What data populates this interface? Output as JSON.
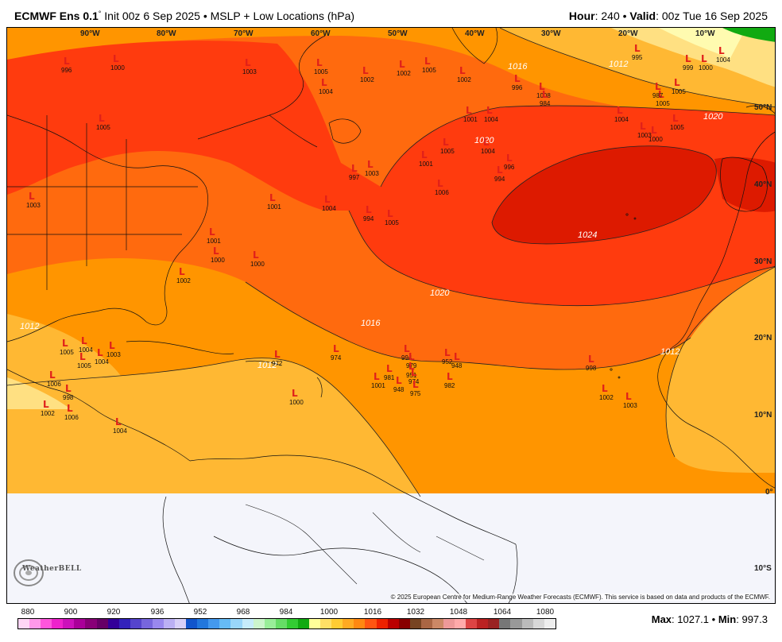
{
  "header": {
    "model": "ECMWF Ens 0.1",
    "deg": "°",
    "init": "Init 00z 6 Sep 2025",
    "sep": "•",
    "field": "MSLP + Low Locations (hPa)",
    "hour_label": "Hour",
    "hour_value": ": 240",
    "valid_label": "Valid",
    "valid_value": ": 00z Tue 16 Sep 2025"
  },
  "lon_labels": [
    "90°W",
    "80°W",
    "70°W",
    "60°W",
    "50°W",
    "40°W",
    "30°W",
    "20°W",
    "10°W"
  ],
  "lat_labels": [
    "50°N",
    "40°N",
    "30°N",
    "20°N",
    "10°N",
    "0°",
    "10°S"
  ],
  "isobar_labels": [
    "1020",
    "1024",
    "1020",
    "1016",
    "1016",
    "1012",
    "1012",
    "1012",
    "1020",
    "1012"
  ],
  "lows": [
    "996",
    "1000",
    "1003",
    "1005",
    "1004",
    "1002",
    "1002",
    "1005",
    "1002",
    "996",
    "1008",
    "995",
    "1004",
    "999",
    "1000",
    "1005",
    "1004",
    "1001",
    "984",
    "1005",
    "987",
    "1005",
    "1004",
    "1003",
    "1000",
    "1005",
    "1001",
    "1004",
    "997",
    "1003",
    "1005",
    "994",
    "996",
    "1006",
    "1001",
    "1004",
    "994",
    "1005",
    "1001",
    "1000",
    "1000",
    "1002",
    "1003",
    "1005",
    "1004",
    "1003",
    "1004",
    "1005",
    "1006",
    "972",
    "974",
    "994",
    "979",
    "981",
    "951",
    "952",
    "948",
    "998",
    "1001",
    "948",
    "974",
    "975",
    "982",
    "1002",
    "1003",
    "1000",
    "1004",
    "1002",
    "1006",
    "998"
  ],
  "legend": {
    "labels": [
      "880",
      "900",
      "920",
      "936",
      "952",
      "968",
      "984",
      "1000",
      "1016",
      "1032",
      "1048",
      "1064",
      "1080"
    ],
    "colors": [
      "#ffd6f6",
      "#ff99ea",
      "#ff55dd",
      "#ee22cc",
      "#cc11bb",
      "#aa0099",
      "#880077",
      "#660066",
      "#330099",
      "#3322bb",
      "#5544cc",
      "#7766dd",
      "#9988ee",
      "#bbb0f4",
      "#d8d0f8",
      "#1155cc",
      "#2277dd",
      "#4499ee",
      "#66bbf5",
      "#99d6fa",
      "#c6ecfb",
      "#ccf5cc",
      "#99ee99",
      "#66dd66",
      "#33cc33",
      "#11aa11",
      "#ffff99",
      "#ffe066",
      "#ffcc33",
      "#ffaa22",
      "#ff8811",
      "#ff5511",
      "#ee2200",
      "#bb0000",
      "#880000",
      "#774422",
      "#aa6644",
      "#cc8866",
      "#ee9999",
      "#ffaaaa",
      "#dd4444",
      "#bb2222",
      "#992222",
      "#777777",
      "#999999",
      "#bbbbbb",
      "#d8d8d8",
      "#eeeeee"
    ]
  },
  "colors": {
    "p1024": "#dd1a00",
    "p1020": "#ff3b0e",
    "p1016": "#ff6a0e",
    "p1012": "#ff9500",
    "p1008": "#ffb833",
    "p1004": "#ffe082",
    "p1000": "#fffbb0",
    "green": "#11aa11",
    "land_masked": "#f4f5fb"
  },
  "copyright": "© 2025 European Centre for Medium-Range Weather Forecasts (ECMWF). This service is based on data and products of the ECMWF.",
  "logo_text": "WeatherBELL",
  "maxmin": {
    "max_label": "Max",
    "max_value": ": 1027.1",
    "sep": "•",
    "min_label": "Min",
    "min_value": ": 997.3"
  }
}
